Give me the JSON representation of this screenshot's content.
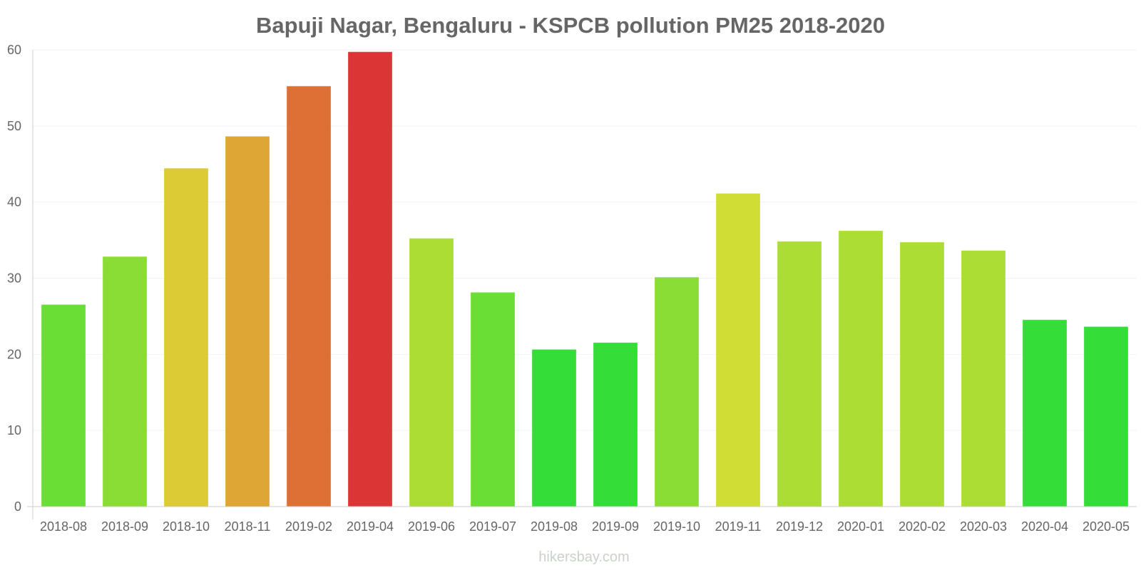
{
  "chart_data": {
    "type": "bar",
    "title": "Bapuji Nagar, Bengaluru - KSPCB pollution PM25 2018-2020",
    "xlabel": "",
    "ylabel": "",
    "ylim": [
      0,
      60
    ],
    "yticks": [
      0,
      10,
      20,
      30,
      40,
      50,
      60
    ],
    "grid": true,
    "categories": [
      "2018-08",
      "2018-09",
      "2018-10",
      "2018-11",
      "2019-02",
      "2019-04",
      "2019-06",
      "2019-07",
      "2019-08",
      "2019-09",
      "2019-10",
      "2019-11",
      "2019-12",
      "2020-01",
      "2020-02",
      "2020-03",
      "2020-04",
      "2020-05"
    ],
    "values": [
      26.5,
      32.8,
      44.4,
      48.6,
      55.2,
      59.7,
      35.2,
      28.1,
      20.6,
      21.5,
      30.1,
      41.1,
      34.8,
      36.2,
      34.7,
      33.6,
      24.5,
      23.6
    ],
    "bar_colors": [
      "#6ade35",
      "#8add35",
      "#dccb35",
      "#dea735",
      "#de7035",
      "#db3535",
      "#abdd35",
      "#6ade35",
      "#35dd38",
      "#35dd38",
      "#8add35",
      "#cfdd35",
      "#abdd35",
      "#abdd35",
      "#abdd35",
      "#abdd35",
      "#35dd38",
      "#35dd38"
    ]
  },
  "footer": {
    "watermark": "hikersbay.com"
  }
}
